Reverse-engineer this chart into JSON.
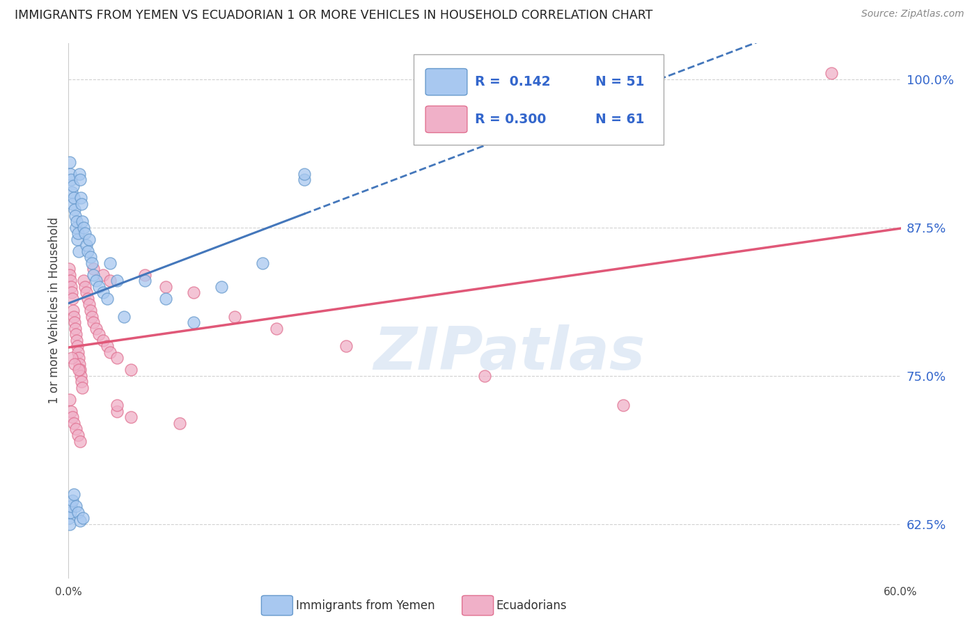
{
  "title": "IMMIGRANTS FROM YEMEN VS ECUADORIAN 1 OR MORE VEHICLES IN HOUSEHOLD CORRELATION CHART",
  "source": "Source: ZipAtlas.com",
  "ylabel": "1 or more Vehicles in Household",
  "xmin": 0.0,
  "xmax": 60.0,
  "ymin": 58.0,
  "ymax": 103.0,
  "yticks": [
    62.5,
    75.0,
    87.5,
    100.0
  ],
  "ytick_labels": [
    "62.5%",
    "75.0%",
    "87.5%",
    "100.0%"
  ],
  "legend_r1": "R =  0.142",
  "legend_n1": "N = 51",
  "legend_r2": "R = 0.300",
  "legend_n2": "N = 61",
  "blue_fill": "#a8c8f0",
  "blue_edge": "#6699cc",
  "pink_fill": "#f0b0c8",
  "pink_edge": "#e07090",
  "blue_line": "#4477bb",
  "pink_line": "#e05878",
  "legend_color": "#3366cc",
  "title_color": "#222222",
  "watermark_color": "#d0dff0",
  "bg_color": "#ffffff",
  "grid_color": "#cccccc",
  "yemen_x": [
    0.1,
    0.15,
    0.2,
    0.25,
    0.3,
    0.35,
    0.4,
    0.45,
    0.5,
    0.55,
    0.6,
    0.65,
    0.7,
    0.75,
    0.8,
    0.85,
    0.9,
    0.95,
    1.0,
    1.1,
    1.2,
    1.3,
    1.4,
    1.5,
    1.6,
    1.7,
    1.8,
    2.0,
    2.2,
    2.5,
    2.8,
    3.0,
    3.5,
    4.0,
    5.5,
    7.0,
    9.0,
    11.0,
    14.0,
    17.0,
    17.0,
    0.05,
    0.08,
    0.12,
    0.18,
    0.28,
    0.38,
    0.52,
    0.68,
    0.82,
    1.05
  ],
  "yemen_y": [
    93.0,
    92.0,
    91.5,
    90.5,
    89.5,
    91.0,
    90.0,
    89.0,
    88.5,
    87.5,
    88.0,
    86.5,
    87.0,
    85.5,
    92.0,
    91.5,
    90.0,
    89.5,
    88.0,
    87.5,
    87.0,
    86.0,
    85.5,
    86.5,
    85.0,
    84.5,
    83.5,
    83.0,
    82.5,
    82.0,
    81.5,
    84.5,
    83.0,
    80.0,
    83.0,
    81.5,
    79.5,
    82.5,
    84.5,
    91.5,
    92.0,
    63.0,
    62.5,
    63.5,
    64.0,
    64.5,
    65.0,
    64.0,
    63.5,
    62.8,
    63.0
  ],
  "ecuador_x": [
    0.05,
    0.1,
    0.15,
    0.2,
    0.25,
    0.3,
    0.35,
    0.4,
    0.45,
    0.5,
    0.55,
    0.6,
    0.65,
    0.7,
    0.75,
    0.8,
    0.85,
    0.9,
    0.95,
    1.0,
    1.1,
    1.2,
    1.3,
    1.4,
    1.5,
    1.6,
    1.7,
    1.8,
    2.0,
    2.2,
    2.5,
    2.8,
    3.0,
    3.5,
    4.5,
    5.5,
    7.0,
    9.0,
    12.0,
    15.0,
    20.0,
    30.0,
    55.0,
    0.08,
    0.18,
    0.28,
    0.38,
    0.52,
    0.68,
    0.82,
    1.8,
    2.5,
    3.0,
    3.5,
    4.5,
    0.22,
    0.45,
    0.72,
    3.5,
    8.0,
    40.0
  ],
  "ecuador_y": [
    84.0,
    83.5,
    83.0,
    82.5,
    82.0,
    81.5,
    80.5,
    80.0,
    79.5,
    79.0,
    78.5,
    78.0,
    77.5,
    77.0,
    76.5,
    76.0,
    75.5,
    75.0,
    74.5,
    74.0,
    83.0,
    82.5,
    82.0,
    81.5,
    81.0,
    80.5,
    80.0,
    79.5,
    79.0,
    78.5,
    78.0,
    77.5,
    77.0,
    76.5,
    75.5,
    83.5,
    82.5,
    82.0,
    80.0,
    79.0,
    77.5,
    75.0,
    100.5,
    73.0,
    72.0,
    71.5,
    71.0,
    70.5,
    70.0,
    69.5,
    84.0,
    83.5,
    83.0,
    72.0,
    71.5,
    76.5,
    76.0,
    75.5,
    72.5,
    71.0,
    72.5
  ],
  "yemen_line_xstart": 0.0,
  "yemen_line_xend": 17.0,
  "ecuador_line_xstart": 0.0,
  "ecuador_line_xend": 60.0
}
